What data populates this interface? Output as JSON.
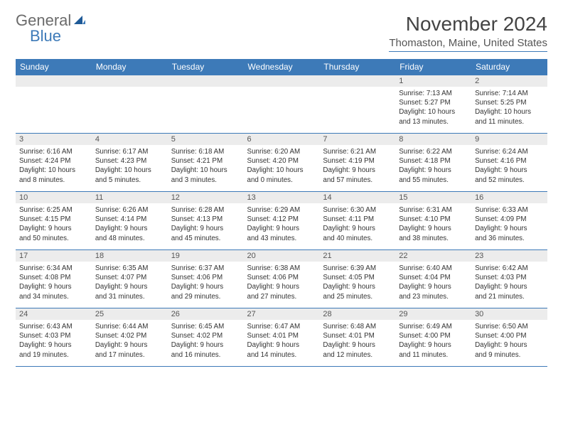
{
  "logo": {
    "text1": "General",
    "text2": "Blue"
  },
  "title": {
    "month": "November 2024",
    "location": "Thomaston, Maine, United States"
  },
  "colors": {
    "accent": "#3d7ab8",
    "header_bg": "#3d7ab8",
    "daynum_bg": "#ececec",
    "text": "#333333"
  },
  "day_headers": [
    "Sunday",
    "Monday",
    "Tuesday",
    "Wednesday",
    "Thursday",
    "Friday",
    "Saturday"
  ],
  "weeks": [
    [
      null,
      null,
      null,
      null,
      null,
      {
        "n": "1",
        "sr": "Sunrise: 7:13 AM",
        "ss": "Sunset: 5:27 PM",
        "d1": "Daylight: 10 hours",
        "d2": "and 13 minutes."
      },
      {
        "n": "2",
        "sr": "Sunrise: 7:14 AM",
        "ss": "Sunset: 5:25 PM",
        "d1": "Daylight: 10 hours",
        "d2": "and 11 minutes."
      }
    ],
    [
      {
        "n": "3",
        "sr": "Sunrise: 6:16 AM",
        "ss": "Sunset: 4:24 PM",
        "d1": "Daylight: 10 hours",
        "d2": "and 8 minutes."
      },
      {
        "n": "4",
        "sr": "Sunrise: 6:17 AM",
        "ss": "Sunset: 4:23 PM",
        "d1": "Daylight: 10 hours",
        "d2": "and 5 minutes."
      },
      {
        "n": "5",
        "sr": "Sunrise: 6:18 AM",
        "ss": "Sunset: 4:21 PM",
        "d1": "Daylight: 10 hours",
        "d2": "and 3 minutes."
      },
      {
        "n": "6",
        "sr": "Sunrise: 6:20 AM",
        "ss": "Sunset: 4:20 PM",
        "d1": "Daylight: 10 hours",
        "d2": "and 0 minutes."
      },
      {
        "n": "7",
        "sr": "Sunrise: 6:21 AM",
        "ss": "Sunset: 4:19 PM",
        "d1": "Daylight: 9 hours",
        "d2": "and 57 minutes."
      },
      {
        "n": "8",
        "sr": "Sunrise: 6:22 AM",
        "ss": "Sunset: 4:18 PM",
        "d1": "Daylight: 9 hours",
        "d2": "and 55 minutes."
      },
      {
        "n": "9",
        "sr": "Sunrise: 6:24 AM",
        "ss": "Sunset: 4:16 PM",
        "d1": "Daylight: 9 hours",
        "d2": "and 52 minutes."
      }
    ],
    [
      {
        "n": "10",
        "sr": "Sunrise: 6:25 AM",
        "ss": "Sunset: 4:15 PM",
        "d1": "Daylight: 9 hours",
        "d2": "and 50 minutes."
      },
      {
        "n": "11",
        "sr": "Sunrise: 6:26 AM",
        "ss": "Sunset: 4:14 PM",
        "d1": "Daylight: 9 hours",
        "d2": "and 48 minutes."
      },
      {
        "n": "12",
        "sr": "Sunrise: 6:28 AM",
        "ss": "Sunset: 4:13 PM",
        "d1": "Daylight: 9 hours",
        "d2": "and 45 minutes."
      },
      {
        "n": "13",
        "sr": "Sunrise: 6:29 AM",
        "ss": "Sunset: 4:12 PM",
        "d1": "Daylight: 9 hours",
        "d2": "and 43 minutes."
      },
      {
        "n": "14",
        "sr": "Sunrise: 6:30 AM",
        "ss": "Sunset: 4:11 PM",
        "d1": "Daylight: 9 hours",
        "d2": "and 40 minutes."
      },
      {
        "n": "15",
        "sr": "Sunrise: 6:31 AM",
        "ss": "Sunset: 4:10 PM",
        "d1": "Daylight: 9 hours",
        "d2": "and 38 minutes."
      },
      {
        "n": "16",
        "sr": "Sunrise: 6:33 AM",
        "ss": "Sunset: 4:09 PM",
        "d1": "Daylight: 9 hours",
        "d2": "and 36 minutes."
      }
    ],
    [
      {
        "n": "17",
        "sr": "Sunrise: 6:34 AM",
        "ss": "Sunset: 4:08 PM",
        "d1": "Daylight: 9 hours",
        "d2": "and 34 minutes."
      },
      {
        "n": "18",
        "sr": "Sunrise: 6:35 AM",
        "ss": "Sunset: 4:07 PM",
        "d1": "Daylight: 9 hours",
        "d2": "and 31 minutes."
      },
      {
        "n": "19",
        "sr": "Sunrise: 6:37 AM",
        "ss": "Sunset: 4:06 PM",
        "d1": "Daylight: 9 hours",
        "d2": "and 29 minutes."
      },
      {
        "n": "20",
        "sr": "Sunrise: 6:38 AM",
        "ss": "Sunset: 4:06 PM",
        "d1": "Daylight: 9 hours",
        "d2": "and 27 minutes."
      },
      {
        "n": "21",
        "sr": "Sunrise: 6:39 AM",
        "ss": "Sunset: 4:05 PM",
        "d1": "Daylight: 9 hours",
        "d2": "and 25 minutes."
      },
      {
        "n": "22",
        "sr": "Sunrise: 6:40 AM",
        "ss": "Sunset: 4:04 PM",
        "d1": "Daylight: 9 hours",
        "d2": "and 23 minutes."
      },
      {
        "n": "23",
        "sr": "Sunrise: 6:42 AM",
        "ss": "Sunset: 4:03 PM",
        "d1": "Daylight: 9 hours",
        "d2": "and 21 minutes."
      }
    ],
    [
      {
        "n": "24",
        "sr": "Sunrise: 6:43 AM",
        "ss": "Sunset: 4:03 PM",
        "d1": "Daylight: 9 hours",
        "d2": "and 19 minutes."
      },
      {
        "n": "25",
        "sr": "Sunrise: 6:44 AM",
        "ss": "Sunset: 4:02 PM",
        "d1": "Daylight: 9 hours",
        "d2": "and 17 minutes."
      },
      {
        "n": "26",
        "sr": "Sunrise: 6:45 AM",
        "ss": "Sunset: 4:02 PM",
        "d1": "Daylight: 9 hours",
        "d2": "and 16 minutes."
      },
      {
        "n": "27",
        "sr": "Sunrise: 6:47 AM",
        "ss": "Sunset: 4:01 PM",
        "d1": "Daylight: 9 hours",
        "d2": "and 14 minutes."
      },
      {
        "n": "28",
        "sr": "Sunrise: 6:48 AM",
        "ss": "Sunset: 4:01 PM",
        "d1": "Daylight: 9 hours",
        "d2": "and 12 minutes."
      },
      {
        "n": "29",
        "sr": "Sunrise: 6:49 AM",
        "ss": "Sunset: 4:00 PM",
        "d1": "Daylight: 9 hours",
        "d2": "and 11 minutes."
      },
      {
        "n": "30",
        "sr": "Sunrise: 6:50 AM",
        "ss": "Sunset: 4:00 PM",
        "d1": "Daylight: 9 hours",
        "d2": "and 9 minutes."
      }
    ]
  ]
}
